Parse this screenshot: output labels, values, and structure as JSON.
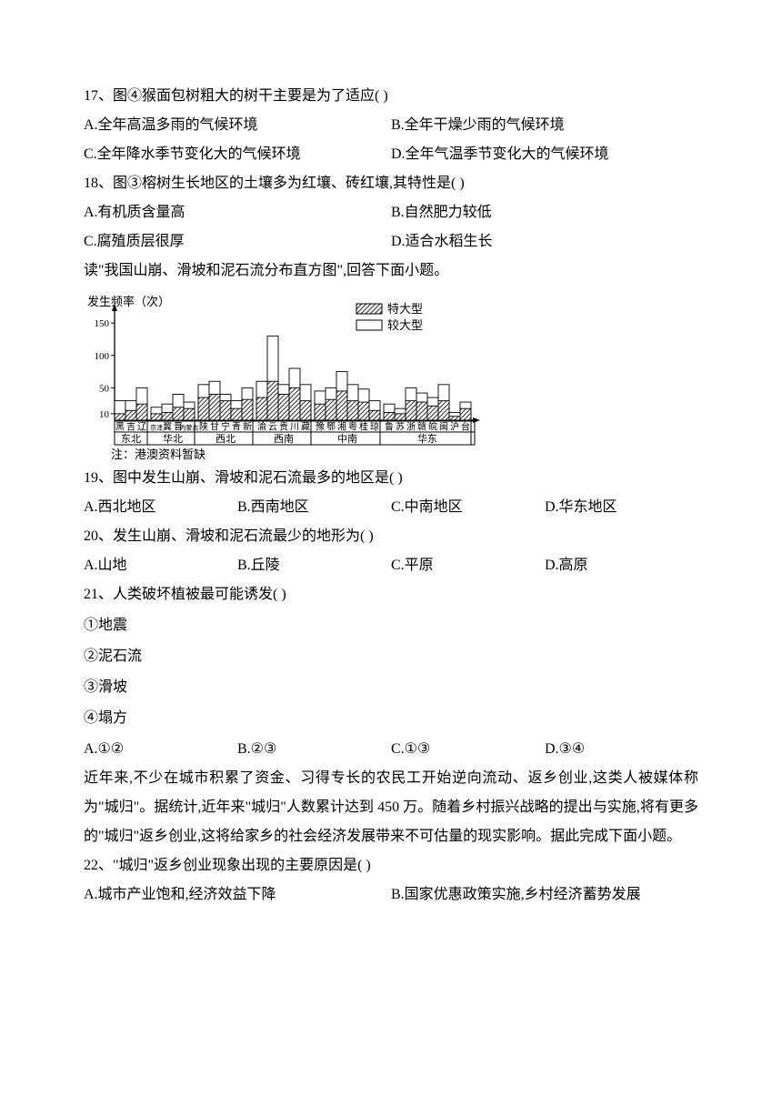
{
  "q17": {
    "stem": "17、图④猴面包树粗大的树干主要是为了适应(   )",
    "opts": {
      "a": "A.全年高温多雨的气候环境",
      "b": "B.全年干燥少雨的气候环境",
      "c": "C.全年降水季节变化大的气候环境",
      "d": "D.全年气温季节变化大的气候环境"
    }
  },
  "q18": {
    "stem": "18、图③榕树生长地区的土壤多为红壤、砖红壤,其特性是(   )",
    "opts": {
      "a": "A.有机质含量高",
      "b": "B.自然肥力较低",
      "c": "C.腐殖质层很厚",
      "d": "D.适合水稻生长"
    }
  },
  "chart_intro": "读\"我国山崩、滑坡和泥石流分布直方图\",回答下面小题。",
  "chart": {
    "ylabel": "发生频率（次）",
    "yticks": [
      10,
      50,
      100,
      150
    ],
    "legend": {
      "solid": "特大型",
      "hollow": "较大型"
    },
    "groups": [
      {
        "region": "东北",
        "provinces": [
          "黑",
          "吉",
          "辽"
        ],
        "solid": [
          10,
          15,
          25
        ],
        "hollow": [
          30,
          30,
          50
        ]
      },
      {
        "region": "华北",
        "provinces": [
          "京津",
          "冀",
          "晋",
          "内蒙古"
        ],
        "solid": [
          10,
          12,
          20,
          18
        ],
        "hollow": [
          20,
          25,
          40,
          28
        ]
      },
      {
        "region": "西北",
        "provinces": [
          "陕",
          "甘",
          "宁",
          "青",
          "新"
        ],
        "solid": [
          35,
          40,
          30,
          18,
          32
        ],
        "hollow": [
          55,
          60,
          40,
          30,
          50
        ]
      },
      {
        "region": "西南",
        "provinces": [
          "渝",
          "云",
          "贵",
          "川",
          "藏"
        ],
        "solid": [
          35,
          60,
          40,
          50,
          30
        ],
        "hollow": [
          60,
          130,
          55,
          80,
          55
        ]
      },
      {
        "region": "中南",
        "provinces": [
          "豫",
          "鄂",
          "湘",
          "粤",
          "桂",
          "琼"
        ],
        "solid": [
          25,
          32,
          45,
          30,
          28,
          15
        ],
        "hollow": [
          45,
          50,
          75,
          55,
          48,
          30
        ]
      },
      {
        "region": "华东",
        "provinces": [
          "鲁",
          "苏",
          "浙",
          "赣",
          "皖",
          "闽",
          "沪",
          "台"
        ],
        "solid": [
          12,
          10,
          30,
          28,
          22,
          30,
          6,
          18
        ],
        "hollow": [
          25,
          18,
          50,
          42,
          35,
          55,
          12,
          28
        ]
      }
    ],
    "note": "注：港澳资料暂缺",
    "colors": {
      "solid": "#4a4a4a",
      "solid_light": "#8c8c8c",
      "hollow_fill": "#ffffff",
      "stroke": "#000000",
      "bg": "#ffffff"
    }
  },
  "q19": {
    "stem": "19、图中发生山崩、滑坡和泥石流最多的地区是(   )",
    "opts": {
      "a": "A.西北地区",
      "b": "B.西南地区",
      "c": "C.中南地区",
      "d": "D.华东地区"
    }
  },
  "q20": {
    "stem": "20、发生山崩、滑坡和泥石流最少的地形为(   )",
    "opts": {
      "a": "A.山地",
      "b": "B.丘陵",
      "c": "C.平原",
      "d": "D.高原"
    }
  },
  "q21": {
    "stem": "21、人类破坏植被最可能诱发(   )",
    "items": {
      "i1": "①地震",
      "i2": "②泥石流",
      "i3": "③滑坡",
      "i4": "④塌方"
    },
    "opts": {
      "a": "A.①②",
      "b": "B.②③",
      "c": "C.①③",
      "d": "D.③④"
    }
  },
  "passage": "近年来,不少在城市积累了资金、习得专长的农民工开始逆向流动、返乡创业,这类人被媒体称为\"城归\"。据统计,近年来\"城归\"人数累计达到 450 万。随着乡村振兴战略的提出与实施,将有更多的\"城归\"返乡创业,这将给家乡的社会经济发展带来不可估量的现实影响。据此完成下面小题。",
  "q22": {
    "stem": "22、\"城归\"返乡创业现象出现的主要原因是(   )",
    "opts": {
      "a": "A.城市产业饱和,经济效益下降",
      "b": "B.国家优惠政策实施,乡村经济蓄势发展"
    }
  }
}
